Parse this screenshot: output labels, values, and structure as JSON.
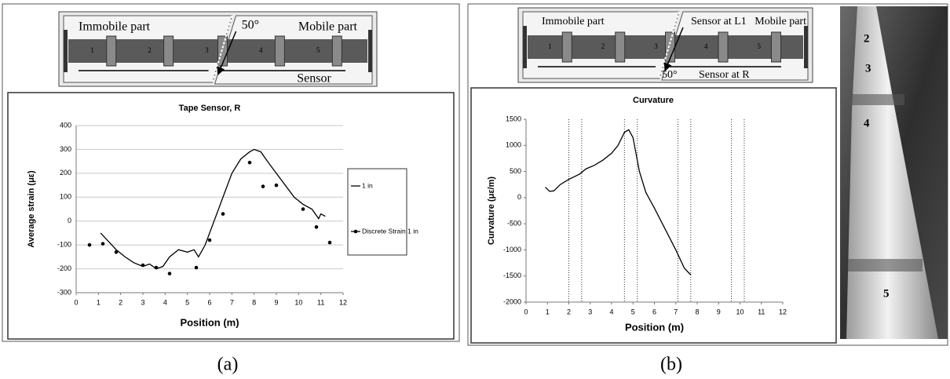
{
  "chart_data": [
    {
      "type": "line",
      "title": "Tape Sensor, R",
      "x_label": "Position (m)",
      "y_label": "Average strain (με)",
      "xlim": [
        0,
        12
      ],
      "xticks": [
        0,
        1,
        2,
        3,
        4,
        5,
        6,
        7,
        8,
        9,
        10,
        11,
        12
      ],
      "ylim": [
        -300,
        400
      ],
      "yticks": [
        -300,
        -200,
        -100,
        0,
        100,
        200,
        300,
        400
      ],
      "grid": true,
      "legend": "right",
      "series": [
        {
          "name": "1 in",
          "color": "#000000",
          "style": "line",
          "x": [
            1.1,
            1.3,
            1.5,
            1.8,
            2.2,
            2.6,
            3.0,
            3.3,
            3.6,
            3.9,
            4.2,
            4.6,
            5.0,
            5.3,
            5.5,
            5.8,
            6.2,
            6.6,
            7.0,
            7.4,
            7.8,
            8.0,
            8.3,
            8.6,
            9.0,
            9.4,
            9.8,
            10.2,
            10.6,
            10.9,
            11.0,
            11.2
          ],
          "values": [
            -50,
            -70,
            -90,
            -120,
            -150,
            -175,
            -190,
            -180,
            -200,
            -190,
            -150,
            -120,
            -130,
            -120,
            -150,
            -100,
            0,
            100,
            200,
            260,
            290,
            300,
            290,
            250,
            200,
            150,
            100,
            70,
            50,
            10,
            30,
            20
          ]
        },
        {
          "name": "Discrete Strain 1 in",
          "color": "#000000",
          "style": "markers",
          "x": [
            0.6,
            1.2,
            1.8,
            3.0,
            3.6,
            4.2,
            5.4,
            6.0,
            6.6,
            7.8,
            8.4,
            9.0,
            10.2,
            10.8,
            11.4
          ],
          "values": [
            -100,
            -95,
            -130,
            -185,
            -195,
            -220,
            -195,
            -80,
            30,
            245,
            145,
            150,
            50,
            -25,
            -90
          ]
        }
      ]
    },
    {
      "type": "line",
      "title": "Curvature",
      "x_label": "Position (m)",
      "y_label": "Curvature (με/m)",
      "xlim": [
        0,
        12
      ],
      "xticks": [
        0,
        1,
        2,
        3,
        4,
        5,
        6,
        7,
        8,
        9,
        10,
        11,
        12
      ],
      "ylim": [
        -2000,
        1500
      ],
      "yticks": [
        -2000,
        -1500,
        -1000,
        -500,
        0,
        500,
        1000,
        1500
      ],
      "grid": false,
      "reference_x": [
        2.0,
        2.6,
        4.6,
        5.2,
        7.1,
        7.7,
        9.6,
        10.2
      ],
      "series": [
        {
          "color": "#000000",
          "style": "line",
          "x": [
            0.9,
            1.1,
            1.3,
            1.6,
            2.0,
            2.5,
            2.8,
            3.2,
            3.6,
            4.0,
            4.3,
            4.6,
            4.8,
            5.0,
            5.3,
            5.6,
            6.0,
            6.5,
            7.0,
            7.4,
            7.7
          ],
          "values": [
            200,
            120,
            130,
            250,
            350,
            450,
            550,
            620,
            720,
            850,
            1000,
            1250,
            1300,
            1150,
            500,
            100,
            -200,
            -600,
            -1000,
            -1350,
            -1480
          ]
        }
      ]
    }
  ],
  "diagram_a": {
    "immobile": "Immobile part",
    "mobile": "Mobile part",
    "angle": "50°",
    "sensor": "Sensor",
    "segments": [
      "1",
      "2",
      "3",
      "4",
      "5"
    ]
  },
  "diagram_b": {
    "immobile": "Immobile part",
    "sensor_l1": "Sensor at L1",
    "mobile": "Mobile part",
    "angle": "50°",
    "sensor_r": "Sensor at R",
    "segments": [
      "1",
      "2",
      "3",
      "4",
      "5"
    ]
  },
  "photo": {
    "labels": [
      "2",
      "3",
      "4",
      "5"
    ]
  },
  "captions": [
    "(a)",
    "(b)"
  ]
}
